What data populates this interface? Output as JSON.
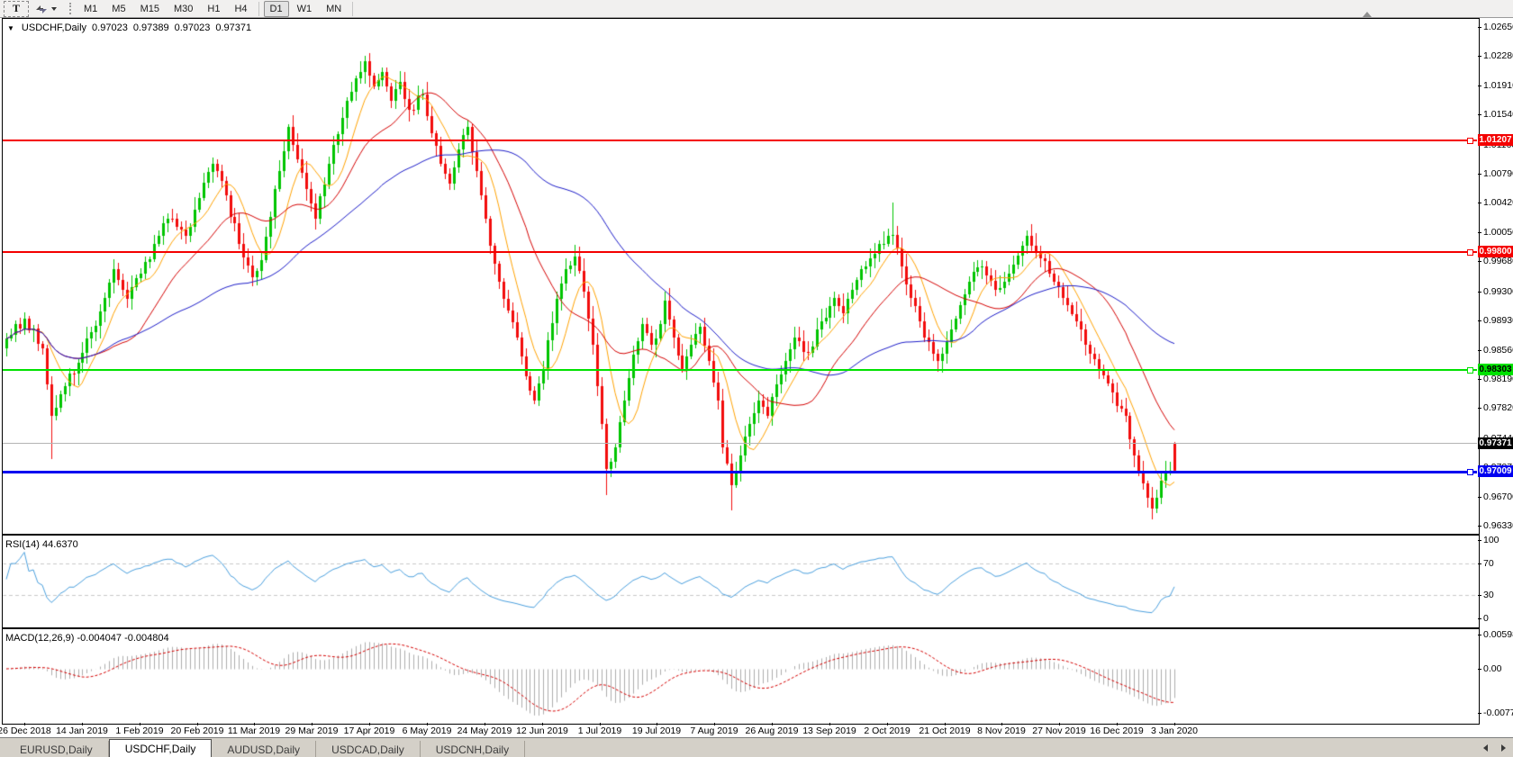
{
  "toolbar": {
    "text_tool_label": "T",
    "timeframes": [
      "M1",
      "M5",
      "M15",
      "M30",
      "H1",
      "H4",
      "D1",
      "W1",
      "MN"
    ],
    "active_timeframe": "D1"
  },
  "symbol_header": {
    "symbol": "USDCHF,Daily",
    "open": "0.97023",
    "high": "0.97389",
    "low": "0.97023",
    "close": "0.97371"
  },
  "main_chart": {
    "price_ticks": [
      "1.02650",
      "1.02280",
      "1.01910",
      "1.01540",
      "1.01160",
      "1.00790",
      "1.00420",
      "1.00050",
      "0.99680",
      "0.99300",
      "0.98930",
      "0.98560",
      "0.98190",
      "0.97820",
      "0.97440",
      "0.97070",
      "0.96700",
      "0.96330"
    ],
    "hlines": [
      {
        "price": "1.01207",
        "color": "#F40000",
        "thickness": 2,
        "label_text_color": "#FFFFFF"
      },
      {
        "price": "0.99800",
        "color": "#F40000",
        "thickness": 2,
        "label_text_color": "#FFFFFF"
      },
      {
        "price": "0.98303",
        "color": "#00E100",
        "thickness": 2,
        "label_text_color": "#000000"
      },
      {
        "price": "0.97009",
        "color": "#0000F0",
        "thickness": 3,
        "label_text_color": "#FFFFFF"
      }
    ],
    "current_price": {
      "value": "0.97371",
      "line_color": "#B4B4B4",
      "label_bg": "#000000",
      "label_text_color": "#FFFFFF"
    },
    "candle_up_color": "#00C400",
    "candle_down_color": "#F20C0C",
    "moving_averages": [
      {
        "period": 8,
        "color": "#FFA200"
      },
      {
        "period": 21,
        "color": "#D40000"
      },
      {
        "period": 55,
        "color": "#1C1CC8"
      }
    ],
    "price_path_anchors": [
      [
        0,
        0.987
      ],
      [
        4,
        0.9895
      ],
      [
        8,
        0.9858
      ],
      [
        10,
        0.9772
      ],
      [
        12,
        0.98
      ],
      [
        17,
        0.9852
      ],
      [
        21,
        0.9905
      ],
      [
        24,
        0.9958
      ],
      [
        27,
        0.992
      ],
      [
        30,
        0.9952
      ],
      [
        33,
        0.999
      ],
      [
        36,
        1.0022
      ],
      [
        40,
        1.0
      ],
      [
        43,
        1.0048
      ],
      [
        46,
        1.0092
      ],
      [
        49,
        1.0052
      ],
      [
        52,
        0.999
      ],
      [
        55,
        0.9948
      ],
      [
        57,
        0.997
      ],
      [
        60,
        1.006
      ],
      [
        63,
        1.0138
      ],
      [
        66,
        1.008
      ],
      [
        69,
        1.0022
      ],
      [
        72,
        1.0092
      ],
      [
        75,
        1.015
      ],
      [
        78,
        1.02
      ],
      [
        80,
        1.0222
      ],
      [
        82,
        1.019
      ],
      [
        84,
        1.0208
      ],
      [
        86,
        1.0172
      ],
      [
        88,
        1.0195
      ],
      [
        90,
        1.016
      ],
      [
        93,
        1.018
      ],
      [
        95,
        1.013
      ],
      [
        97,
        1.0092
      ],
      [
        99,
        1.0066
      ],
      [
        101,
        1.011
      ],
      [
        103,
        1.0138
      ],
      [
        105,
        1.0082
      ],
      [
        107,
        1.0022
      ],
      [
        108,
        0.9988
      ],
      [
        110,
        0.9942
      ],
      [
        112,
        0.9906
      ],
      [
        114,
        0.9872
      ],
      [
        116,
        0.9822
      ],
      [
        118,
        0.9792
      ],
      [
        120,
        0.9832
      ],
      [
        121,
        0.9868
      ],
      [
        123,
        0.992
      ],
      [
        125,
        0.9958
      ],
      [
        127,
        0.9974
      ],
      [
        129,
        0.993
      ],
      [
        131,
        0.9862
      ],
      [
        133,
        0.9762
      ],
      [
        134,
        0.9705
      ],
      [
        136,
        0.9732
      ],
      [
        138,
        0.9792
      ],
      [
        140,
        0.985
      ],
      [
        142,
        0.9888
      ],
      [
        144,
        0.9862
      ],
      [
        146,
        0.9888
      ],
      [
        147,
        0.9918
      ],
      [
        149,
        0.9872
      ],
      [
        151,
        0.9832
      ],
      [
        153,
        0.9862
      ],
      [
        155,
        0.9885
      ],
      [
        157,
        0.9842
      ],
      [
        159,
        0.9792
      ],
      [
        160,
        0.9732
      ],
      [
        162,
        0.9684
      ],
      [
        164,
        0.9722
      ],
      [
        166,
        0.9762
      ],
      [
        168,
        0.9792
      ],
      [
        170,
        0.9772
      ],
      [
        172,
        0.9812
      ],
      [
        174,
        0.9842
      ],
      [
        176,
        0.9872
      ],
      [
        179,
        0.9852
      ],
      [
        182,
        0.9892
      ],
      [
        185,
        0.9922
      ],
      [
        187,
        0.9902
      ],
      [
        189,
        0.9932
      ],
      [
        192,
        0.9962
      ],
      [
        195,
        0.999
      ],
      [
        198,
        1.0002
      ],
      [
        200,
        0.9962
      ],
      [
        202,
        0.9922
      ],
      [
        205,
        0.9872
      ],
      [
        208,
        0.9842
      ],
      [
        211,
        0.9882
      ],
      [
        213,
        0.9912
      ],
      [
        215,
        0.9942
      ],
      [
        218,
        0.9962
      ],
      [
        221,
        0.9932
      ],
      [
        224,
        0.9952
      ],
      [
        226,
        0.9975
      ],
      [
        228,
        1.0
      ],
      [
        231,
        0.9972
      ],
      [
        234,
        0.9942
      ],
      [
        237,
        0.9912
      ],
      [
        239,
        0.9892
      ],
      [
        241,
        0.9862
      ],
      [
        244,
        0.9832
      ],
      [
        247,
        0.9802
      ],
      [
        250,
        0.9772
      ],
      [
        251,
        0.9742
      ],
      [
        253,
        0.9702
      ],
      [
        255,
        0.9668
      ],
      [
        256,
        0.9655
      ],
      [
        257,
        0.9668
      ],
      [
        258,
        0.969
      ],
      [
        259,
        0.97
      ],
      [
        260,
        0.9703
      ],
      [
        261,
        0.9737
      ]
    ],
    "wick_spikes": [
      {
        "i": 10,
        "low": 0.9718
      },
      {
        "i": 80,
        "high": 1.0228
      },
      {
        "i": 134,
        "low": 0.9672
      },
      {
        "i": 162,
        "low": 0.9652
      },
      {
        "i": 198,
        "high": 1.0042
      },
      {
        "i": 256,
        "low": 0.9641
      }
    ],
    "last_candle": {
      "o": 0.97023,
      "h": 0.97389,
      "l": 0.97023,
      "c": 0.97371,
      "force_color": "down"
    }
  },
  "rsi_panel": {
    "label": "RSI(14) 44.6370",
    "ticks": [
      "100",
      "70",
      "30",
      "0"
    ],
    "dashed_levels": [
      70,
      30
    ],
    "line_color": "#4A9FDD"
  },
  "macd_panel": {
    "label": "MACD(12,26,9) -0.004047 -0.004804",
    "ticks": [
      "0.005986",
      "0.00",
      "-0.00773"
    ],
    "histogram_color": "#ADADAD",
    "signal_color": "#D40000"
  },
  "date_axis": {
    "labels": [
      "26 Dec 2018",
      "14 Jan 2019",
      "1 Feb 2019",
      "20 Feb 2019",
      "11 Mar 2019",
      "29 Mar 2019",
      "17 Apr 2019",
      "6 May 2019",
      "24 May 2019",
      "12 Jun 2019",
      "1 Jul 2019",
      "19 Jul 2019",
      "7 Aug 2019",
      "26 Aug 2019",
      "13 Sep 2019",
      "2 Oct 2019",
      "21 Oct 2019",
      "8 Nov 2019",
      "27 Nov 2019",
      "16 Dec 2019",
      "3 Jan 2020"
    ]
  },
  "tab_bar": {
    "tabs": [
      "EURUSD,Daily",
      "USDCHF,Daily",
      "AUDUSD,Daily",
      "USDCAD,Daily",
      "USDCNH,Daily"
    ],
    "active_tab": "USDCHF,Daily"
  }
}
